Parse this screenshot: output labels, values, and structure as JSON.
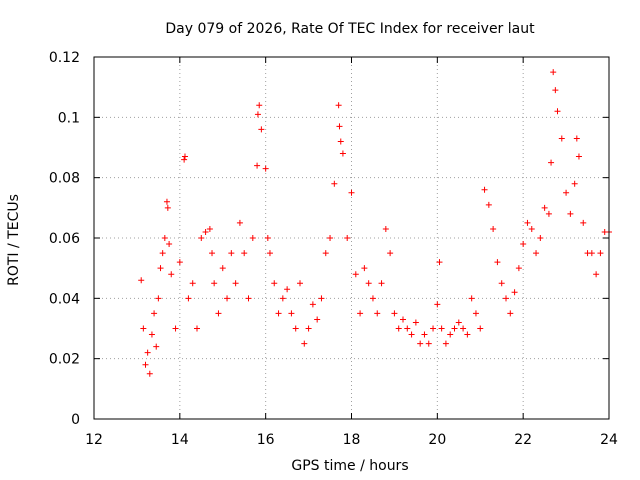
{
  "chart_data": {
    "type": "scatter",
    "title": "Day 079 of 2026, Rate Of TEC Index for receiver laut",
    "xlabel": "GPS time / hours",
    "ylabel": "ROTI / TECUs",
    "xlim": [
      12,
      24
    ],
    "ylim": [
      0,
      0.12
    ],
    "x_ticks": [
      12,
      14,
      16,
      18,
      20,
      22,
      24
    ],
    "x_tick_labels": [
      "12",
      "14",
      "16",
      "18",
      "20",
      "22",
      "24"
    ],
    "y_ticks": [
      0,
      0.02,
      0.04,
      0.06,
      0.08,
      0.1,
      0.12
    ],
    "y_tick_labels": [
      "0",
      "0.02",
      "0.04",
      "0.06",
      "0.08",
      "0.1",
      "0.12"
    ],
    "grid": true,
    "marker": "+",
    "marker_color": "#ff0000",
    "series": [
      {
        "name": "ROTI",
        "x": [
          13.1,
          13.15,
          13.2,
          13.25,
          13.3,
          13.35,
          13.4,
          13.45,
          13.5,
          13.55,
          13.6,
          13.65,
          13.7,
          13.72,
          13.75,
          13.8,
          13.9,
          14.0,
          14.1,
          14.12,
          14.2,
          14.3,
          14.4,
          14.5,
          14.6,
          14.7,
          14.75,
          14.8,
          14.9,
          15.0,
          15.1,
          15.2,
          15.3,
          15.4,
          15.5,
          15.6,
          15.7,
          15.8,
          15.82,
          15.85,
          15.9,
          16.0,
          16.05,
          16.1,
          16.2,
          16.3,
          16.4,
          16.5,
          16.6,
          16.7,
          16.8,
          16.9,
          17.0,
          17.1,
          17.2,
          17.3,
          17.4,
          17.5,
          17.6,
          17.7,
          17.72,
          17.75,
          17.8,
          17.9,
          18.0,
          18.1,
          18.2,
          18.3,
          18.4,
          18.5,
          18.6,
          18.7,
          18.8,
          18.9,
          19.0,
          19.1,
          19.2,
          19.3,
          19.4,
          19.5,
          19.6,
          19.7,
          19.8,
          19.9,
          20.0,
          20.05,
          20.1,
          20.2,
          20.3,
          20.4,
          20.5,
          20.6,
          20.7,
          20.8,
          20.9,
          21.0,
          21.1,
          21.2,
          21.3,
          21.4,
          21.5,
          21.6,
          21.7,
          21.8,
          21.9,
          22.0,
          22.1,
          22.2,
          22.3,
          22.4,
          22.5,
          22.6,
          22.65,
          22.7,
          22.75,
          22.8,
          22.9,
          23.0,
          23.1,
          23.2,
          23.25,
          23.3,
          23.4,
          23.5,
          23.6,
          23.7,
          23.8,
          23.9,
          24.0
        ],
        "y": [
          0.046,
          0.03,
          0.018,
          0.022,
          0.015,
          0.028,
          0.035,
          0.024,
          0.04,
          0.05,
          0.055,
          0.06,
          0.072,
          0.07,
          0.058,
          0.048,
          0.03,
          0.052,
          0.086,
          0.087,
          0.04,
          0.045,
          0.03,
          0.06,
          0.062,
          0.063,
          0.055,
          0.045,
          0.035,
          0.05,
          0.04,
          0.055,
          0.045,
          0.065,
          0.055,
          0.04,
          0.06,
          0.084,
          0.101,
          0.104,
          0.096,
          0.083,
          0.06,
          0.055,
          0.045,
          0.035,
          0.04,
          0.043,
          0.035,
          0.03,
          0.045,
          0.025,
          0.03,
          0.038,
          0.033,
          0.04,
          0.055,
          0.06,
          0.078,
          0.104,
          0.097,
          0.092,
          0.088,
          0.06,
          0.075,
          0.048,
          0.035,
          0.05,
          0.045,
          0.04,
          0.035,
          0.045,
          0.063,
          0.055,
          0.035,
          0.03,
          0.033,
          0.03,
          0.028,
          0.032,
          0.025,
          0.028,
          0.025,
          0.03,
          0.038,
          0.052,
          0.03,
          0.025,
          0.028,
          0.03,
          0.032,
          0.03,
          0.028,
          0.04,
          0.035,
          0.03,
          0.076,
          0.071,
          0.063,
          0.052,
          0.045,
          0.04,
          0.035,
          0.042,
          0.05,
          0.058,
          0.065,
          0.063,
          0.055,
          0.06,
          0.07,
          0.068,
          0.085,
          0.115,
          0.109,
          0.102,
          0.093,
          0.075,
          0.068,
          0.078,
          0.093,
          0.087,
          0.065,
          0.055,
          0.055,
          0.048,
          0.055,
          0.062,
          0.062
        ]
      }
    ]
  }
}
